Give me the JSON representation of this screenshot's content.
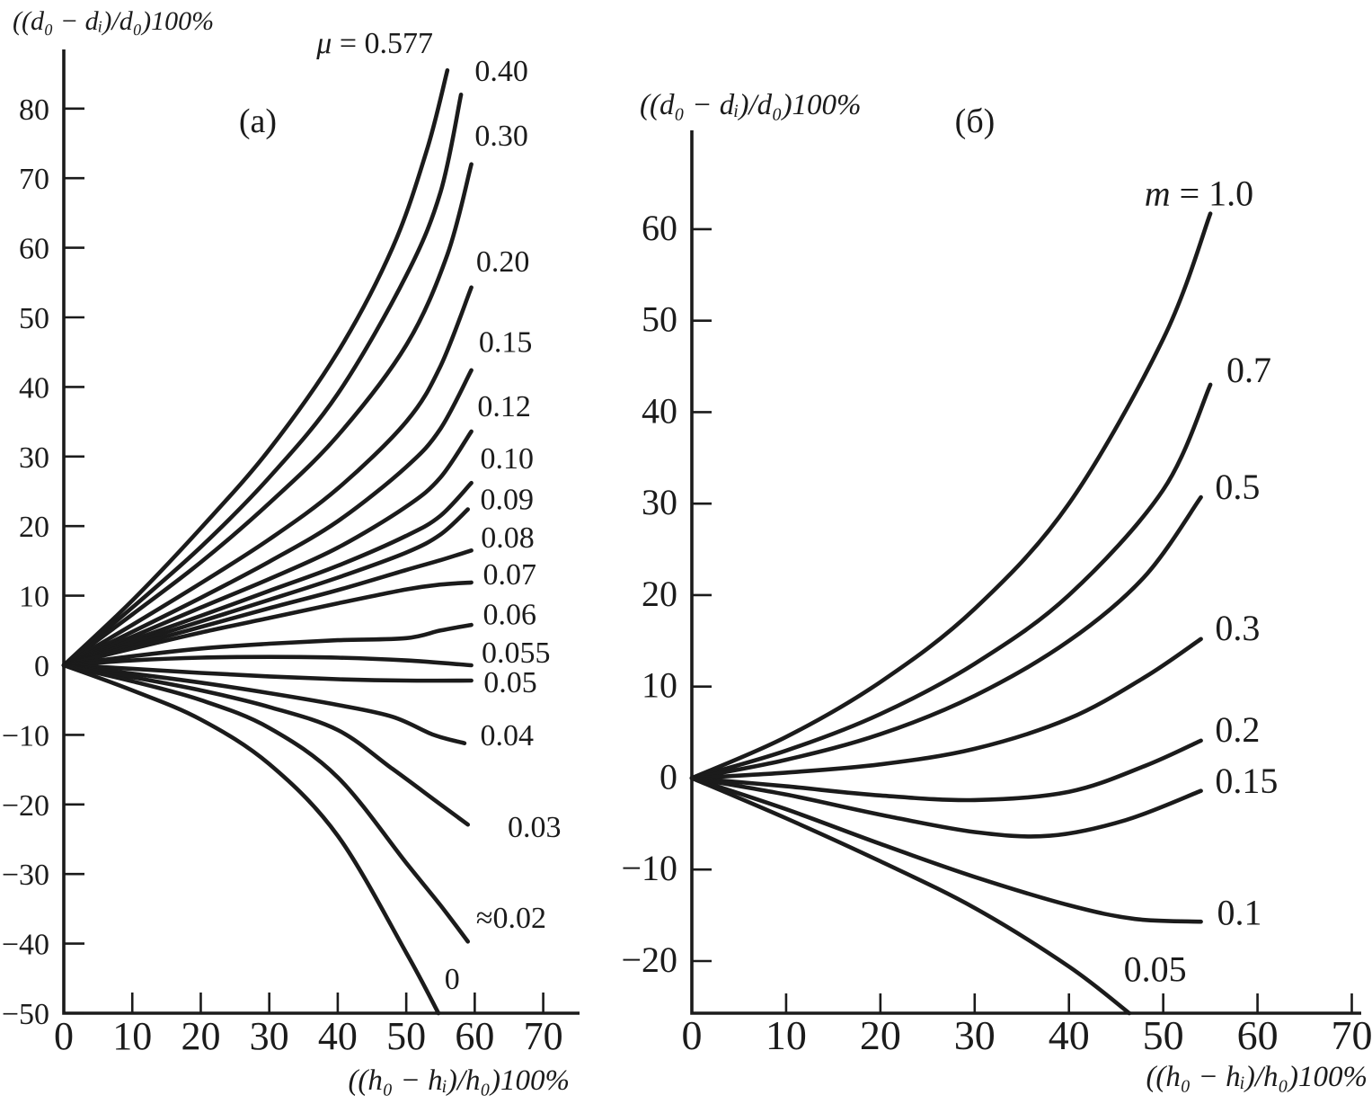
{
  "figure": {
    "background": "#ffffff",
    "ink_color": "#1b1b1b",
    "description_tags": [
      "(a)",
      "(б)"
    ]
  },
  "chart_data": [
    {
      "type": "line",
      "panel_tag": "(a)",
      "ylabel": "((d₀ − dᵢ)/d₀)100%",
      "xlabel": "((h₀ − hᵢ)/h₀)100%",
      "xlim": [
        0,
        75.3
      ],
      "ylim": [
        -50,
        88.5
      ],
      "xticks": [
        0,
        10,
        20,
        30,
        40,
        50,
        60,
        70
      ],
      "yticks": [
        -50,
        -40,
        -30,
        -20,
        -10,
        0,
        10,
        20,
        30,
        40,
        50,
        60,
        70,
        80
      ],
      "grid": false,
      "legend_position": "labels-at-curve-ends",
      "series": [
        {
          "label": "μ = 0.577",
          "label_at": [
            36.9,
            88.0
          ],
          "points": [
            [
              0,
              0
            ],
            [
              10,
              9.3
            ],
            [
              20,
              19.7
            ],
            [
              30,
              31
            ],
            [
              40,
              45
            ],
            [
              48,
              60
            ],
            [
              53,
              74
            ],
            [
              56,
              85.5
            ]
          ]
        },
        {
          "label": "0.40",
          "label_at": [
            60.0,
            84.0
          ],
          "points": [
            [
              0,
              0
            ],
            [
              10,
              8.3
            ],
            [
              20,
              17
            ],
            [
              30,
              27
            ],
            [
              40,
              39
            ],
            [
              50,
              56
            ],
            [
              55,
              68
            ],
            [
              58,
              82
            ]
          ]
        },
        {
          "label": "0.30",
          "label_at": [
            60.0,
            74.7
          ],
          "points": [
            [
              0,
              0
            ],
            [
              10,
              7.3
            ],
            [
              20,
              14.8
            ],
            [
              30,
              23.3
            ],
            [
              40,
              33
            ],
            [
              50,
              46
            ],
            [
              56,
              59
            ],
            [
              59.5,
              72
            ]
          ]
        },
        {
          "label": "0.20",
          "label_at": [
            60.2,
            56.6
          ],
          "points": [
            [
              0,
              0
            ],
            [
              10,
              5.8
            ],
            [
              20,
              11.8
            ],
            [
              30,
              18.1
            ],
            [
              40,
              25.4
            ],
            [
              50,
              35
            ],
            [
              55,
              43
            ],
            [
              59.5,
              54.3
            ]
          ]
        },
        {
          "label": "0.15",
          "label_at": [
            60.6,
            45.0
          ],
          "points": [
            [
              0,
              0
            ],
            [
              10,
              4.8
            ],
            [
              20,
              9.7
            ],
            [
              30,
              14.9
            ],
            [
              40,
              20.7
            ],
            [
              50,
              28.5
            ],
            [
              55,
              34
            ],
            [
              59.5,
              42.4
            ]
          ]
        },
        {
          "label": "0.12",
          "label_at": [
            60.4,
            35.8
          ],
          "points": [
            [
              0,
              0
            ],
            [
              10,
              4.1
            ],
            [
              20,
              8.3
            ],
            [
              30,
              12.4
            ],
            [
              40,
              16.9
            ],
            [
              50,
              22.8
            ],
            [
              55,
              27
            ],
            [
              59.5,
              33.6
            ]
          ]
        },
        {
          "label": "0.10",
          "label_at": [
            60.8,
            28.3
          ],
          "points": [
            [
              0,
              0
            ],
            [
              10,
              3.6
            ],
            [
              20,
              7.1
            ],
            [
              30,
              10.7
            ],
            [
              40,
              14.3
            ],
            [
              50,
              18.6
            ],
            [
              55,
              21.5
            ],
            [
              59.5,
              26.2
            ]
          ]
        },
        {
          "label": "0.09",
          "label_at": [
            60.8,
            22.4
          ],
          "points": [
            [
              0,
              0
            ],
            [
              10,
              3.2
            ],
            [
              20,
              6.3
            ],
            [
              30,
              9.4
            ],
            [
              40,
              12.6
            ],
            [
              50,
              16.2
            ],
            [
              55,
              18.8
            ],
            [
              59,
              22.4
            ]
          ]
        },
        {
          "label": "0.08",
          "label_at": [
            60.9,
            16.9
          ],
          "points": [
            [
              0,
              0
            ],
            [
              10,
              2.8
            ],
            [
              20,
              5.5
            ],
            [
              30,
              8.2
            ],
            [
              40,
              10.8
            ],
            [
              50,
              13.7
            ],
            [
              55,
              15.1
            ],
            [
              59.5,
              16.5
            ]
          ]
        },
        {
          "label": "0.07",
          "label_at": [
            61.2,
            11.6
          ],
          "points": [
            [
              0,
              0
            ],
            [
              10,
              2.4
            ],
            [
              20,
              4.7
            ],
            [
              30,
              6.8
            ],
            [
              40,
              8.9
            ],
            [
              50,
              10.9
            ],
            [
              55,
              11.6
            ],
            [
              59.5,
              11.9
            ]
          ]
        },
        {
          "label": "0.06",
          "label_at": [
            61.2,
            5.9
          ],
          "points": [
            [
              0,
              0
            ],
            [
              10,
              1.3
            ],
            [
              20,
              2.4
            ],
            [
              30,
              3.1
            ],
            [
              40,
              3.6
            ],
            [
              50,
              3.9
            ],
            [
              55,
              5.0
            ],
            [
              59.5,
              5.8
            ]
          ]
        },
        {
          "label": "0.055",
          "label_at": [
            61.0,
            0.4
          ],
          "points": [
            [
              0,
              0
            ],
            [
              10,
              0.7
            ],
            [
              20,
              1.1
            ],
            [
              30,
              1.2
            ],
            [
              40,
              1.1
            ],
            [
              50,
              0.7
            ],
            [
              59.5,
              0
            ]
          ]
        },
        {
          "label": "0.05",
          "label_at": [
            61.3,
            -3.9
          ],
          "points": [
            [
              0,
              0
            ],
            [
              10,
              -0.5
            ],
            [
              20,
              -1.1
            ],
            [
              30,
              -1.6
            ],
            [
              40,
              -2
            ],
            [
              50,
              -2.2
            ],
            [
              59.5,
              -2.2
            ]
          ]
        },
        {
          "label": "0.04",
          "label_at": [
            60.8,
            -11.5
          ],
          "points": [
            [
              0,
              0
            ],
            [
              10,
              -1.2
            ],
            [
              20,
              -2.5
            ],
            [
              30,
              -4
            ],
            [
              40,
              -5.7
            ],
            [
              48,
              -7.4
            ],
            [
              54,
              -10
            ],
            [
              58.5,
              -11.2
            ]
          ]
        },
        {
          "label": "0.03",
          "label_at": [
            64.8,
            -24.7
          ],
          "points": [
            [
              0,
              0
            ],
            [
              10,
              -1.7
            ],
            [
              20,
              -3.6
            ],
            [
              30,
              -6
            ],
            [
              40,
              -9.3
            ],
            [
              48,
              -14.9
            ],
            [
              55,
              -20
            ],
            [
              59,
              -22.9
            ]
          ]
        },
        {
          "label": "≈0.02",
          "label_at": [
            60.2,
            -37.7
          ],
          "points": [
            [
              0,
              0
            ],
            [
              10,
              -2.3
            ],
            [
              20,
              -5
            ],
            [
              30,
              -9
            ],
            [
              40,
              -16.1
            ],
            [
              50,
              -28.4
            ],
            [
              55,
              -34.5
            ],
            [
              59,
              -39.7
            ]
          ]
        },
        {
          "label": "0",
          "label_at": [
            55.6,
            -46.5
          ],
          "points": [
            [
              0,
              0
            ],
            [
              10,
              -3.6
            ],
            [
              20,
              -7.8
            ],
            [
              30,
              -14.2
            ],
            [
              40,
              -24.5
            ],
            [
              50,
              -41.3
            ],
            [
              54.7,
              -50
            ]
          ]
        }
      ]
    },
    {
      "type": "line",
      "panel_tag": "(б)",
      "ylabel": "((d₀ − dᵢ)/d₀)100%",
      "xlabel": "((h₀ − hᵢ)/h₀)100%",
      "xlim": [
        0,
        71
      ],
      "ylim": [
        -25.7,
        70.8
      ],
      "xticks": [
        0,
        10,
        20,
        30,
        40,
        50,
        60,
        70
      ],
      "yticks": [
        -20,
        -10,
        0,
        10,
        20,
        30,
        40,
        50,
        60
      ],
      "grid": false,
      "legend_position": "labels-at-curve-ends",
      "series": [
        {
          "label": "m = 1.0",
          "label_at": [
            48.0,
            62.6
          ],
          "points": [
            [
              0,
              0
            ],
            [
              10,
              4.5
            ],
            [
              20,
              10.5
            ],
            [
              30,
              18.5
            ],
            [
              40,
              30
            ],
            [
              50,
              48
            ],
            [
              55,
              61.7
            ]
          ]
        },
        {
          "label": "0.7",
          "label_at": [
            56.7,
            43.3
          ],
          "points": [
            [
              0,
              0
            ],
            [
              10,
              3
            ],
            [
              20,
              7
            ],
            [
              30,
              12.5
            ],
            [
              40,
              20
            ],
            [
              50,
              31.5
            ],
            [
              55,
              43
            ]
          ]
        },
        {
          "label": "0.5",
          "label_at": [
            55.5,
            30.5
          ],
          "points": [
            [
              0,
              0
            ],
            [
              10,
              2
            ],
            [
              20,
              4.8
            ],
            [
              30,
              9
            ],
            [
              40,
              15
            ],
            [
              48,
              22
            ],
            [
              54,
              30.7
            ]
          ]
        },
        {
          "label": "0.3",
          "label_at": [
            55.5,
            15.1
          ],
          "points": [
            [
              0,
              0
            ],
            [
              10,
              0.6
            ],
            [
              20,
              1.5
            ],
            [
              30,
              3.2
            ],
            [
              40,
              6.5
            ],
            [
              48,
              11
            ],
            [
              54,
              15.2
            ]
          ]
        },
        {
          "label": "0.2",
          "label_at": [
            55.5,
            4.0
          ],
          "points": [
            [
              0,
              0
            ],
            [
              10,
              -0.9
            ],
            [
              20,
              -1.9
            ],
            [
              30,
              -2.4
            ],
            [
              40,
              -1.5
            ],
            [
              48,
              1.3
            ],
            [
              54,
              4.1
            ]
          ]
        },
        {
          "label": "0.15",
          "label_at": [
            55.5,
            -1.6
          ],
          "points": [
            [
              0,
              0
            ],
            [
              10,
              -1.8
            ],
            [
              20,
              -4
            ],
            [
              30,
              -5.9
            ],
            [
              38,
              -6.3
            ],
            [
              46,
              -4.6
            ],
            [
              54,
              -1.4
            ]
          ]
        },
        {
          "label": "0.1",
          "label_at": [
            55.7,
            -16.0
          ],
          "points": [
            [
              0,
              0
            ],
            [
              10,
              -3.4
            ],
            [
              20,
              -7.2
            ],
            [
              30,
              -10.8
            ],
            [
              40,
              -13.9
            ],
            [
              47,
              -15.4
            ],
            [
              54,
              -15.7
            ]
          ]
        },
        {
          "label": "0.05",
          "label_at": [
            45.8,
            -22.2
          ],
          "points": [
            [
              0,
              0
            ],
            [
              10,
              -4.4
            ],
            [
              20,
              -9.1
            ],
            [
              30,
              -14.2
            ],
            [
              40,
              -20.6
            ],
            [
              46.4,
              -25.7
            ]
          ]
        }
      ]
    }
  ]
}
